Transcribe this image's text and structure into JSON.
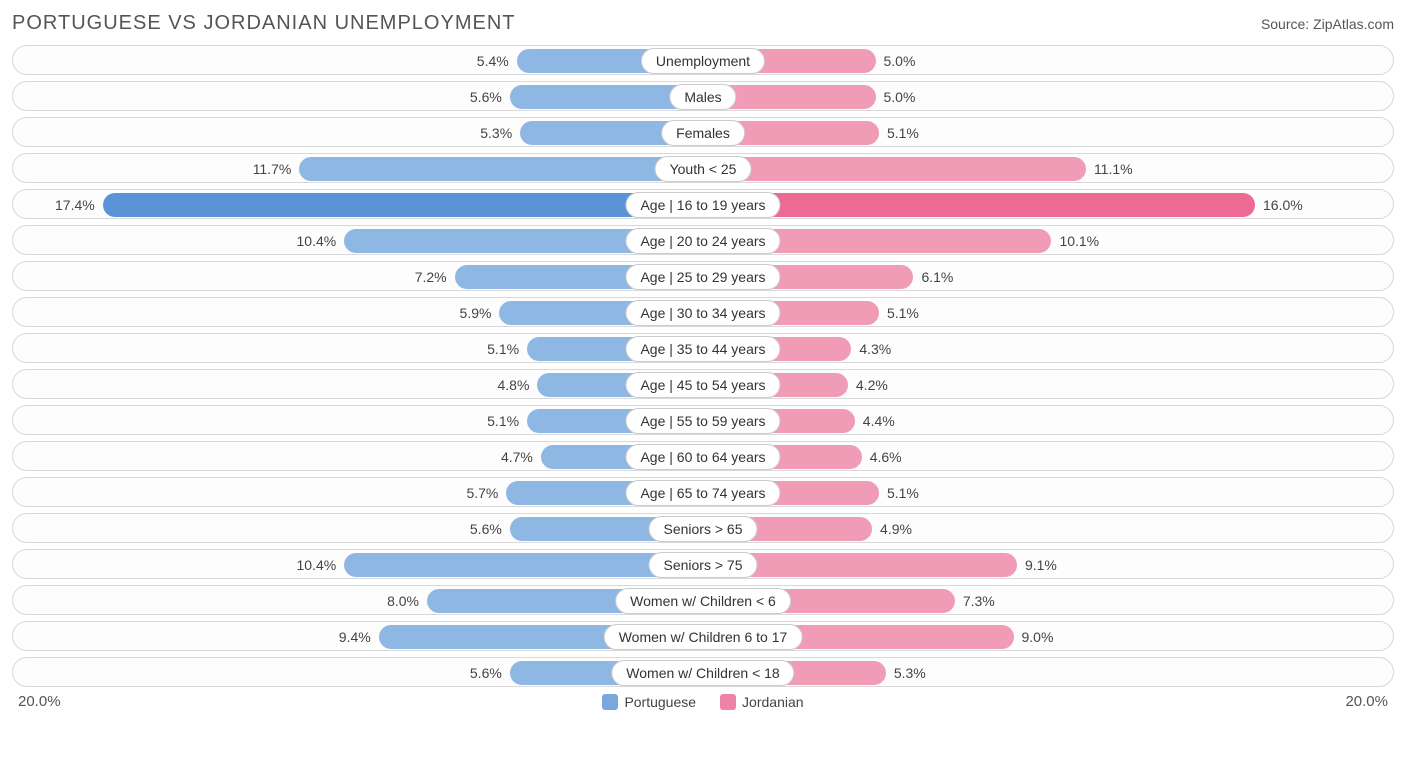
{
  "title": "PORTUGUESE VS JORDANIAN UNEMPLOYMENT",
  "source": "Source: ZipAtlas.com",
  "chart": {
    "type": "tornado-bar",
    "axis_max": 20.0,
    "axis_max_label": "20.0%",
    "background_color": "#ffffff",
    "row_border_color": "#d8d8d8",
    "row_bg_color": "#fdfdfd",
    "title_fontsize": 20,
    "label_fontsize": 14,
    "left": {
      "name": "Portuguese",
      "color_light": "#8fb7e4",
      "color_dark": "#5a93d6",
      "swatch_color": "#79a8dd"
    },
    "right": {
      "name": "Jordanian",
      "color_light": "#f19cb7",
      "color_dark": "#ec6a93",
      "swatch_color": "#ee83a5"
    },
    "rows": [
      {
        "category": "Unemployment",
        "left_val": 5.4,
        "left_label": "5.4%",
        "right_val": 5.0,
        "right_label": "5.0%",
        "highlight": false
      },
      {
        "category": "Males",
        "left_val": 5.6,
        "left_label": "5.6%",
        "right_val": 5.0,
        "right_label": "5.0%",
        "highlight": false
      },
      {
        "category": "Females",
        "left_val": 5.3,
        "left_label": "5.3%",
        "right_val": 5.1,
        "right_label": "5.1%",
        "highlight": false
      },
      {
        "category": "Youth < 25",
        "left_val": 11.7,
        "left_label": "11.7%",
        "right_val": 11.1,
        "right_label": "11.1%",
        "highlight": false
      },
      {
        "category": "Age | 16 to 19 years",
        "left_val": 17.4,
        "left_label": "17.4%",
        "right_val": 16.0,
        "right_label": "16.0%",
        "highlight": true
      },
      {
        "category": "Age | 20 to 24 years",
        "left_val": 10.4,
        "left_label": "10.4%",
        "right_val": 10.1,
        "right_label": "10.1%",
        "highlight": false
      },
      {
        "category": "Age | 25 to 29 years",
        "left_val": 7.2,
        "left_label": "7.2%",
        "right_val": 6.1,
        "right_label": "6.1%",
        "highlight": false
      },
      {
        "category": "Age | 30 to 34 years",
        "left_val": 5.9,
        "left_label": "5.9%",
        "right_val": 5.1,
        "right_label": "5.1%",
        "highlight": false
      },
      {
        "category": "Age | 35 to 44 years",
        "left_val": 5.1,
        "left_label": "5.1%",
        "right_val": 4.3,
        "right_label": "4.3%",
        "highlight": false
      },
      {
        "category": "Age | 45 to 54 years",
        "left_val": 4.8,
        "left_label": "4.8%",
        "right_val": 4.2,
        "right_label": "4.2%",
        "highlight": false
      },
      {
        "category": "Age | 55 to 59 years",
        "left_val": 5.1,
        "left_label": "5.1%",
        "right_val": 4.4,
        "right_label": "4.4%",
        "highlight": false
      },
      {
        "category": "Age | 60 to 64 years",
        "left_val": 4.7,
        "left_label": "4.7%",
        "right_val": 4.6,
        "right_label": "4.6%",
        "highlight": false
      },
      {
        "category": "Age | 65 to 74 years",
        "left_val": 5.7,
        "left_label": "5.7%",
        "right_val": 5.1,
        "right_label": "5.1%",
        "highlight": false
      },
      {
        "category": "Seniors > 65",
        "left_val": 5.6,
        "left_label": "5.6%",
        "right_val": 4.9,
        "right_label": "4.9%",
        "highlight": false
      },
      {
        "category": "Seniors > 75",
        "left_val": 10.4,
        "left_label": "10.4%",
        "right_val": 9.1,
        "right_label": "9.1%",
        "highlight": false
      },
      {
        "category": "Women w/ Children < 6",
        "left_val": 8.0,
        "left_label": "8.0%",
        "right_val": 7.3,
        "right_label": "7.3%",
        "highlight": false
      },
      {
        "category": "Women w/ Children 6 to 17",
        "left_val": 9.4,
        "left_label": "9.4%",
        "right_val": 9.0,
        "right_label": "9.0%",
        "highlight": false
      },
      {
        "category": "Women w/ Children < 18",
        "left_val": 5.6,
        "left_label": "5.6%",
        "right_val": 5.3,
        "right_label": "5.3%",
        "highlight": false
      }
    ]
  }
}
